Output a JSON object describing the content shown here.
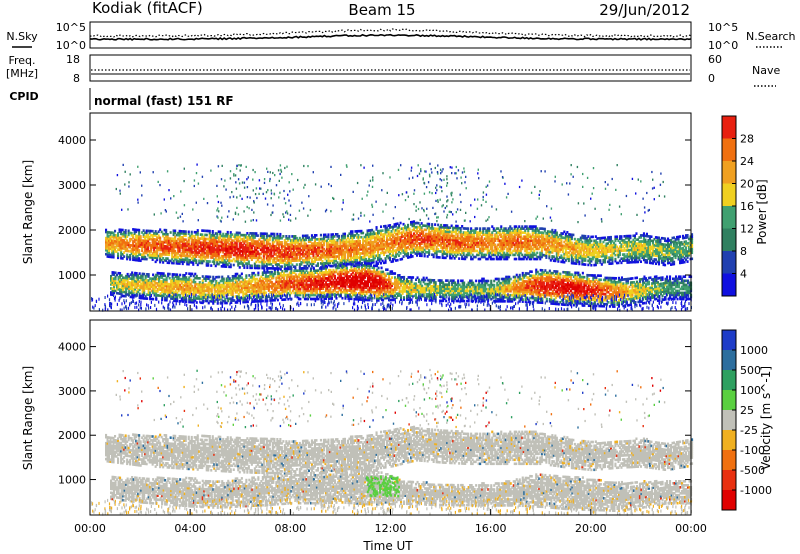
{
  "header": {
    "station": "Kodiak (fitACF)",
    "beam": "Beam 15",
    "date": "29/Jun/2012"
  },
  "meta_panels": {
    "nsky_label": "N.Sky",
    "nsearch_label": "N.Search",
    "nsky_ticks": [
      "10^5",
      "10^0"
    ],
    "nsearch_ticks": [
      "10^5",
      "10^0"
    ],
    "freq_label_1": "Freq.",
    "freq_label_2": "[MHz]",
    "freq_ticks": [
      "18",
      "8"
    ],
    "nave_label": "Nave",
    "nave_ticks": [
      "60",
      "0"
    ],
    "cpid_label": "CPID",
    "cpid_value": "normal (fast) 151 RF"
  },
  "colors": {
    "power_scale": [
      "#1010e0",
      "#2040b0",
      "#308060",
      "#40a070",
      "#f0d020",
      "#f0a020",
      "#f07010",
      "#e82010",
      "#e00000"
    ],
    "velocity_scale": [
      "#1e3cc8",
      "#2c6e9e",
      "#2ea060",
      "#5ad040",
      "#c0c0b8",
      "#ffffff",
      "#f0b020",
      "#f07010",
      "#e83010",
      "#e00000"
    ],
    "ground_scatter": "#c0c0b8"
  },
  "chart_data": [
    {
      "type": "heatmap",
      "title": "Power",
      "ylabel": "Slant Range [km]",
      "xlabel": "",
      "y_ticks": [
        "1000",
        "2000",
        "3000",
        "4000"
      ],
      "y_range": [
        200,
        4600
      ],
      "x_ticks": [
        "00:00",
        "04:00",
        "08:00",
        "12:00",
        "16:00",
        "20:00",
        "00:00"
      ],
      "x_range_hours": [
        0,
        24
      ],
      "colorbar": {
        "label": "Power [dB]",
        "tick_labels": [
          "4",
          "8",
          "12",
          "16",
          "20",
          "24",
          "28"
        ],
        "range": [
          0,
          32
        ]
      },
      "bands": [
        {
          "name": "upper",
          "t": [
            0.6,
            2,
            4,
            6,
            8,
            9.5,
            11,
            12,
            13,
            14,
            15,
            16,
            17,
            18,
            19,
            20,
            21,
            22,
            23,
            24
          ],
          "range_km": [
            1700,
            1650,
            1600,
            1550,
            1500,
            1520,
            1600,
            1700,
            1800,
            1750,
            1700,
            1700,
            1720,
            1700,
            1600,
            1520,
            1550,
            1600,
            1500,
            1600
          ],
          "width_km": [
            300,
            350,
            380,
            400,
            380,
            360,
            400,
            420,
            380,
            380,
            360,
            360,
            380,
            360,
            340,
            320,
            300,
            320,
            300,
            300
          ],
          "peak_db": [
            20,
            24,
            26,
            28,
            26,
            24,
            22,
            22,
            26,
            24,
            24,
            22,
            24,
            22,
            20,
            18,
            16,
            16,
            14,
            14
          ]
        },
        {
          "name": "lower",
          "t": [
            0.8,
            2,
            4,
            5,
            6,
            7,
            8,
            9,
            10,
            11,
            11.5,
            12.5,
            14,
            16,
            17,
            18,
            19,
            20,
            21,
            22,
            23,
            24
          ],
          "range_km": [
            800,
            750,
            700,
            650,
            700,
            750,
            800,
            800,
            850,
            850,
            800,
            700,
            650,
            650,
            700,
            750,
            700,
            650,
            600,
            650,
            700,
            700
          ],
          "width_km": [
            250,
            280,
            320,
            300,
            320,
            340,
            350,
            350,
            380,
            420,
            380,
            260,
            240,
            250,
            300,
            380,
            380,
            350,
            320,
            300,
            250,
            250
          ],
          "peak_db": [
            16,
            18,
            20,
            18,
            20,
            22,
            26,
            28,
            30,
            32,
            30,
            18,
            14,
            14,
            22,
            28,
            30,
            28,
            22,
            16,
            12,
            10
          ]
        }
      ]
    },
    {
      "type": "heatmap",
      "title": "Velocity",
      "ylabel": "Slant Range [km]",
      "xlabel": "Time UT",
      "y_ticks": [
        "1000",
        "2000",
        "3000",
        "4000"
      ],
      "y_range": [
        200,
        4600
      ],
      "x_ticks": [
        "00:00",
        "04:00",
        "08:00",
        "12:00",
        "16:00",
        "20:00",
        "00:00"
      ],
      "x_range_hours": [
        0,
        24
      ],
      "colorbar": {
        "label": "Velocity [m s^-1]",
        "tick_labels": [
          "1000",
          "500",
          "100",
          "25",
          "-25",
          "-100",
          "-500",
          "-1000"
        ]
      },
      "note_values": "Both echo bands mostly ground scatter (grey, |v| < 25 m/s); small green (+100 m/s) patch near 11:30 UT at 900 km; orange (-100..-500 m/s) patches near 07:00 at 3200 km and 08:00 at 700 km."
    }
  ]
}
